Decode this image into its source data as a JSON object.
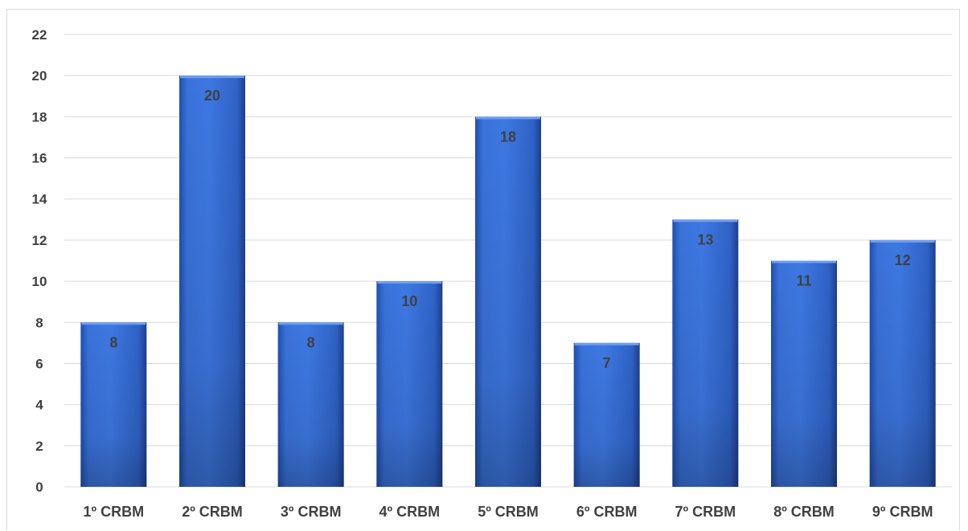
{
  "chart_data": {
    "type": "bar",
    "categories": [
      "1º CRBM",
      "2º CRBM",
      "3º CRBM",
      "4º CRBM",
      "5º CRBM",
      "6º CRBM",
      "7º CRBM",
      "8º CRBM",
      "9º CRBM"
    ],
    "values": [
      8,
      20,
      8,
      10,
      18,
      7,
      13,
      11,
      12
    ],
    "data_labels": [
      "8",
      "20",
      "8",
      "10",
      "18",
      "7",
      "13",
      "11",
      "12"
    ],
    "y_ticks": [
      "0",
      "2",
      "4",
      "6",
      "8",
      "10",
      "12",
      "14",
      "16",
      "18",
      "20",
      "22"
    ],
    "ylim": [
      0,
      22
    ],
    "grid": true,
    "legend": "none",
    "bar_color": "#3a6fd0",
    "bar_color_dark": "#1f3f8f"
  }
}
